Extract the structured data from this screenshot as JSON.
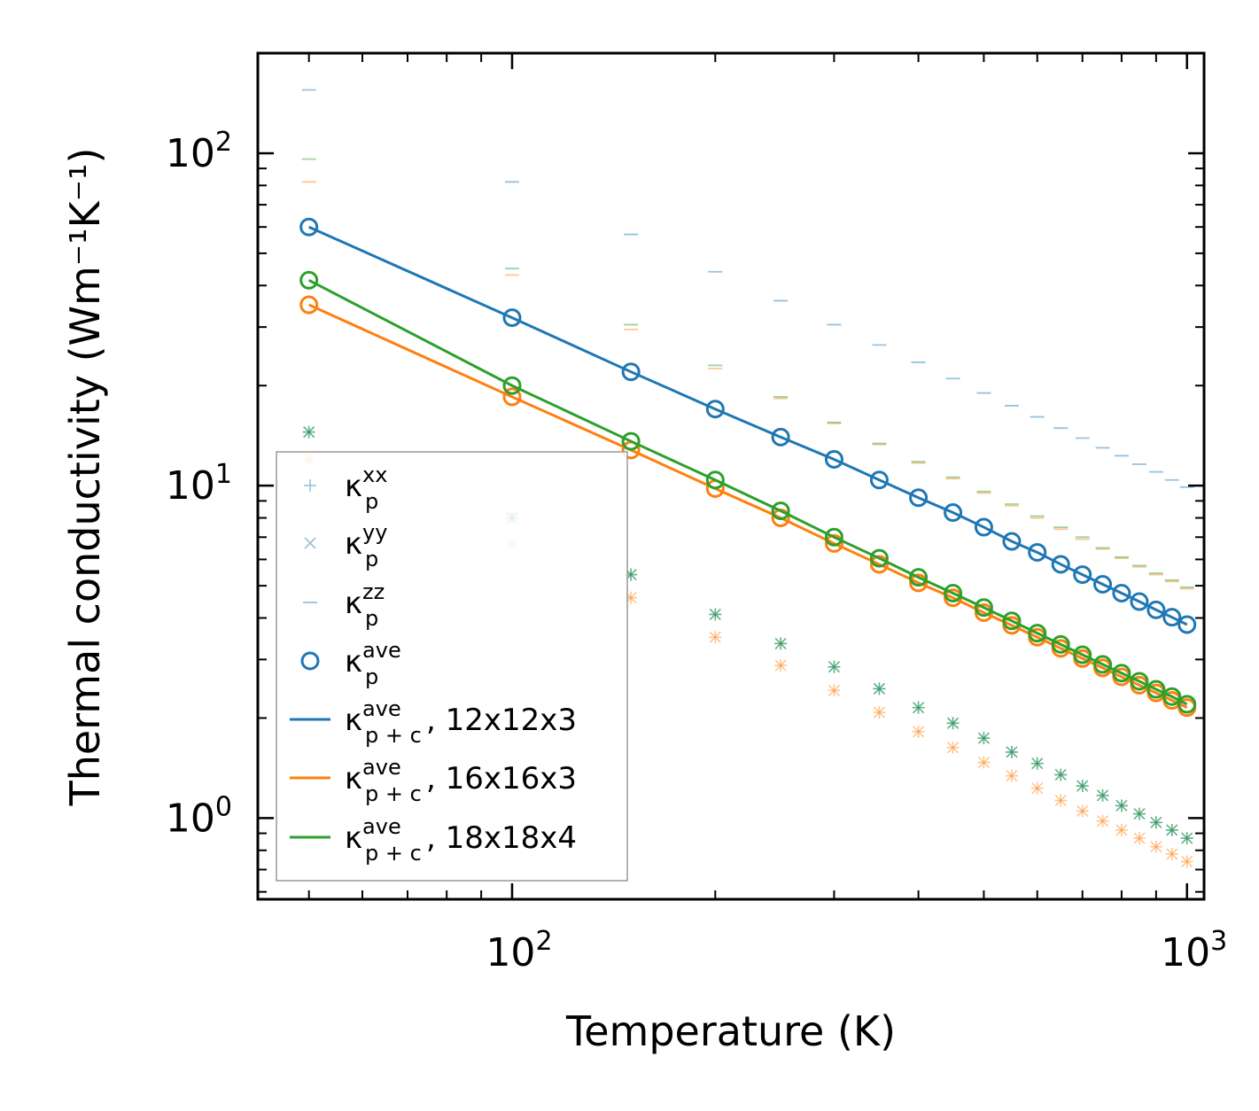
{
  "chart_data": {
    "type": "scatter",
    "scale": "log-log",
    "xlabel": "Temperature (K)",
    "ylabel": "Thermal conductivity (Wm⁻¹K⁻¹)",
    "xlim": [
      42,
      1060
    ],
    "ylim": [
      0.57,
      200
    ],
    "x_ticks": [
      {
        "base": "10",
        "exp": "2",
        "value": 100
      },
      {
        "base": "10",
        "exp": "3",
        "value": 1000
      }
    ],
    "y_ticks": [
      {
        "base": "10",
        "exp": "0",
        "value": 1
      },
      {
        "base": "10",
        "exp": "1",
        "value": 10
      },
      {
        "base": "10",
        "exp": "2",
        "value": 100
      }
    ],
    "temperatures": [
      50,
      100,
      150,
      200,
      250,
      300,
      350,
      400,
      450,
      500,
      550,
      600,
      650,
      700,
      750,
      800,
      850,
      900,
      950,
      1000
    ],
    "series": [
      {
        "name": "12x12x3",
        "color": "#1f77b4",
        "kxx": [
          14.5,
          8.0,
          5.4,
          4.1,
          3.35,
          2.85,
          2.45,
          2.15,
          1.93,
          1.74,
          1.58,
          1.46,
          1.35,
          1.25,
          1.17,
          1.09,
          1.03,
          0.97,
          0.92,
          0.87
        ],
        "kyy": [
          14.5,
          8.0,
          5.4,
          4.1,
          3.35,
          2.85,
          2.45,
          2.15,
          1.93,
          1.74,
          1.58,
          1.46,
          1.35,
          1.25,
          1.17,
          1.09,
          1.03,
          0.97,
          0.92,
          0.87
        ],
        "kzz": [
          155,
          82,
          57,
          44,
          36,
          30.5,
          26.5,
          23.5,
          21,
          19,
          17.4,
          16.1,
          14.9,
          13.9,
          13.0,
          12.3,
          11.6,
          11.0,
          10.4,
          9.9
        ],
        "kave": [
          60,
          32,
          22,
          17,
          14,
          12,
          10.4,
          9.2,
          8.3,
          7.5,
          6.8,
          6.3,
          5.8,
          5.4,
          5.05,
          4.75,
          4.48,
          4.23,
          4.02,
          3.82
        ],
        "kave_pc": [
          60,
          32,
          22,
          17,
          14,
          12,
          10.4,
          9.2,
          8.3,
          7.5,
          6.8,
          6.3,
          5.8,
          5.4,
          5.05,
          4.75,
          4.48,
          4.23,
          4.02,
          3.82
        ]
      },
      {
        "name": "16x16x3",
        "color": "#ff7f0e",
        "kxx": [
          12.0,
          6.7,
          4.6,
          3.5,
          2.88,
          2.42,
          2.08,
          1.82,
          1.63,
          1.47,
          1.34,
          1.23,
          1.13,
          1.05,
          0.98,
          0.92,
          0.87,
          0.82,
          0.78,
          0.74
        ],
        "kyy": [
          12.0,
          6.7,
          4.6,
          3.5,
          2.88,
          2.42,
          2.08,
          1.82,
          1.63,
          1.47,
          1.34,
          1.23,
          1.13,
          1.05,
          0.98,
          0.92,
          0.87,
          0.82,
          0.78,
          0.74
        ],
        "kzz": [
          82,
          43,
          29.5,
          22.5,
          18.3,
          15.4,
          13.3,
          11.7,
          10.5,
          9.5,
          8.7,
          8.0,
          7.4,
          6.9,
          6.45,
          6.05,
          5.7,
          5.4,
          5.15,
          4.9
        ],
        "kave": [
          35,
          18.5,
          12.8,
          9.8,
          8.0,
          6.7,
          5.8,
          5.1,
          4.6,
          4.15,
          3.8,
          3.5,
          3.24,
          3.02,
          2.83,
          2.66,
          2.51,
          2.38,
          2.26,
          2.15
        ],
        "kave_pc": [
          35,
          18.5,
          12.8,
          9.8,
          8.0,
          6.7,
          5.8,
          5.1,
          4.6,
          4.15,
          3.8,
          3.5,
          3.24,
          3.02,
          2.83,
          2.66,
          2.51,
          2.38,
          2.26,
          2.15
        ]
      },
      {
        "name": "18x18x4",
        "color": "#2ca02c",
        "kxx": [
          14.5,
          8.0,
          5.4,
          4.1,
          3.35,
          2.85,
          2.45,
          2.15,
          1.93,
          1.74,
          1.58,
          1.46,
          1.35,
          1.25,
          1.17,
          1.09,
          1.03,
          0.97,
          0.92,
          0.87
        ],
        "kyy": [
          14.5,
          8.0,
          5.4,
          4.1,
          3.35,
          2.85,
          2.45,
          2.15,
          1.93,
          1.74,
          1.58,
          1.46,
          1.35,
          1.25,
          1.17,
          1.09,
          1.03,
          0.97,
          0.92,
          0.87
        ],
        "kzz": [
          96,
          45,
          30.5,
          23,
          18.5,
          15.5,
          13.4,
          11.8,
          10.6,
          9.6,
          8.8,
          8.1,
          7.5,
          7.0,
          6.5,
          6.1,
          5.75,
          5.45,
          5.2,
          4.95
        ],
        "kave": [
          41.5,
          20,
          13.6,
          10.4,
          8.4,
          7.0,
          6.05,
          5.3,
          4.75,
          4.3,
          3.92,
          3.6,
          3.33,
          3.1,
          2.9,
          2.73,
          2.58,
          2.44,
          2.32,
          2.2
        ],
        "kave_pc": [
          41.5,
          20,
          13.6,
          10.4,
          8.4,
          7.0,
          6.05,
          5.3,
          4.75,
          4.3,
          3.92,
          3.6,
          3.33,
          3.1,
          2.9,
          2.73,
          2.58,
          2.44,
          2.32,
          2.2
        ]
      }
    ],
    "legend": {
      "position": "lower-left",
      "entries": [
        {
          "kind": "plus",
          "base": "κ",
          "sup": "xx",
          "sub": "p",
          "suffix": "",
          "color": "#1f77b4"
        },
        {
          "kind": "cross",
          "base": "κ",
          "sup": "yy",
          "sub": "p",
          "suffix": "",
          "color": "#1f77b4"
        },
        {
          "kind": "dash",
          "base": "κ",
          "sup": "zz",
          "sub": "p",
          "suffix": "",
          "color": "#1f77b4"
        },
        {
          "kind": "circle",
          "base": "κ",
          "sup": "ave",
          "sub": "p",
          "suffix": "",
          "color": "#1f77b4"
        },
        {
          "kind": "line",
          "base": "κ",
          "sup": "ave",
          "sub": "p + c",
          "suffix": ", 12x12x3",
          "color": "#1f77b4"
        },
        {
          "kind": "line",
          "base": "κ",
          "sup": "ave",
          "sub": "p + c",
          "suffix": ", 16x16x3",
          "color": "#ff7f0e"
        },
        {
          "kind": "line",
          "base": "κ",
          "sup": "ave",
          "sub": "p + c",
          "suffix": ", 18x18x4",
          "color": "#2ca02c"
        }
      ]
    }
  }
}
